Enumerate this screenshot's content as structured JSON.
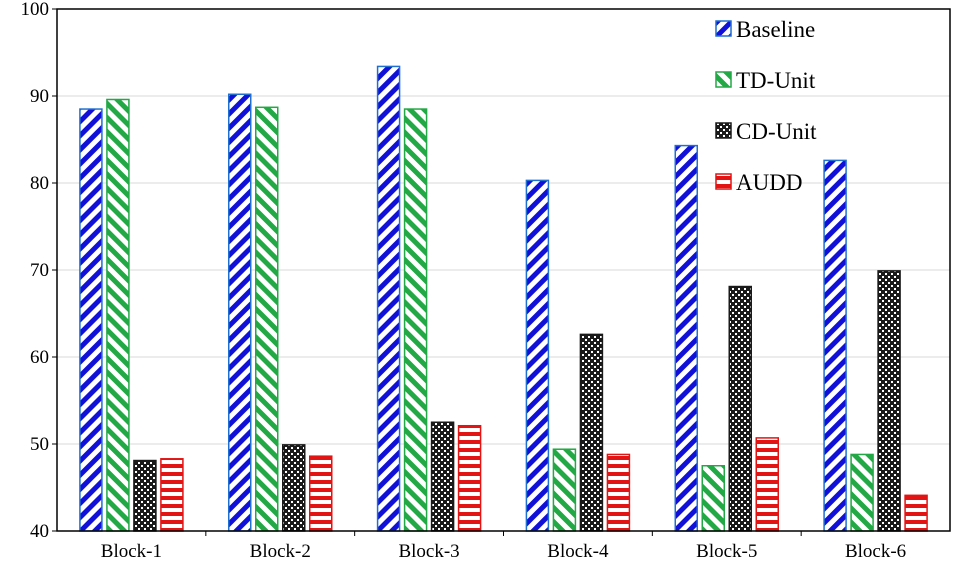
{
  "chart_data": {
    "type": "bar",
    "title": "",
    "xlabel": "",
    "ylabel": "",
    "ylim": [
      40,
      100
    ],
    "yticks": [
      40,
      50,
      60,
      70,
      80,
      90,
      100
    ],
    "grid": true,
    "legend_position": "top-right",
    "categories": [
      "Block-1",
      "Block-2",
      "Block-3",
      "Block-4",
      "Block-5",
      "Block-6"
    ],
    "series": [
      {
        "name": "Baseline",
        "pattern": "diagonal-left",
        "color": "#1010d8",
        "edge": "#1f6fd1",
        "values": [
          88.5,
          90.2,
          93.4,
          80.3,
          84.3,
          82.6
        ]
      },
      {
        "name": "TD-Unit",
        "pattern": "diagonal-right",
        "color": "#22a845",
        "edge": "#22a845",
        "values": [
          89.6,
          88.7,
          88.5,
          49.4,
          47.5,
          48.8
        ]
      },
      {
        "name": "CD-Unit",
        "pattern": "checker",
        "color": "#1a1a1a",
        "edge": "#1a1a1a",
        "values": [
          48.1,
          49.9,
          52.5,
          62.6,
          68.1,
          69.9
        ]
      },
      {
        "name": "AUDD",
        "pattern": "horizontal",
        "color": "#e21414",
        "edge": "#e21414",
        "values": [
          48.3,
          48.6,
          52.1,
          48.8,
          50.7,
          44.1
        ]
      }
    ]
  }
}
